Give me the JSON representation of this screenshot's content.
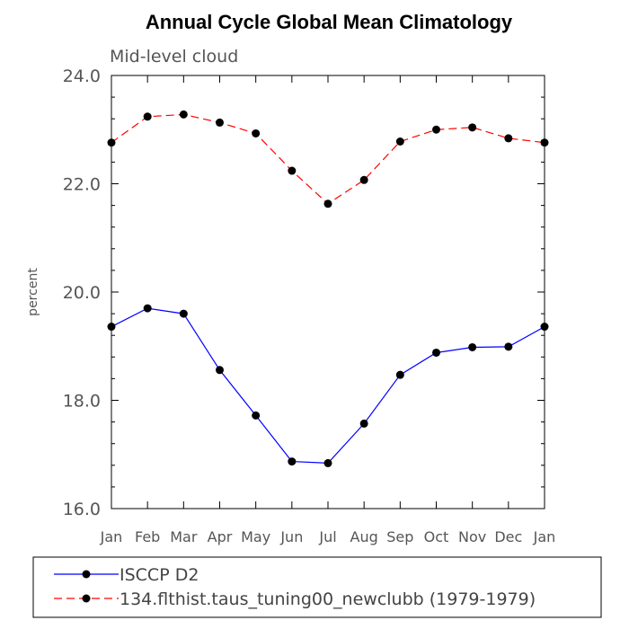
{
  "chart_data": {
    "type": "line",
    "title": "Annual Cycle Global Mean Climatology",
    "subtitle": "Mid-level cloud",
    "xlabel": "",
    "ylabel": "percent",
    "categories": [
      "Jan",
      "Feb",
      "Mar",
      "Apr",
      "May",
      "Jun",
      "Jul",
      "Aug",
      "Sep",
      "Oct",
      "Nov",
      "Dec",
      "Jan"
    ],
    "ylim": [
      16.0,
      24.0
    ],
    "yticks": [
      16.0,
      18.0,
      20.0,
      22.0,
      24.0
    ],
    "ytick_labels": [
      "16.0",
      "18.0",
      "20.0",
      "22.0",
      "24.0"
    ],
    "grid": false,
    "legend_position": "bottom-left",
    "series": [
      {
        "name": "ISCCP D2",
        "color": "#0000ff",
        "dash": "solid",
        "values": [
          19.36,
          19.7,
          19.6,
          18.56,
          17.72,
          16.87,
          16.84,
          17.57,
          18.47,
          18.88,
          18.98,
          18.99,
          19.36
        ]
      },
      {
        "name": "134.flthist.taus_tuning00_newclubb (1979-1979)",
        "color": "#ff0000",
        "dash": "dashed",
        "values": [
          22.76,
          23.24,
          23.28,
          23.13,
          22.93,
          22.24,
          21.63,
          22.07,
          22.78,
          23.0,
          23.04,
          22.84,
          22.76
        ]
      }
    ]
  }
}
